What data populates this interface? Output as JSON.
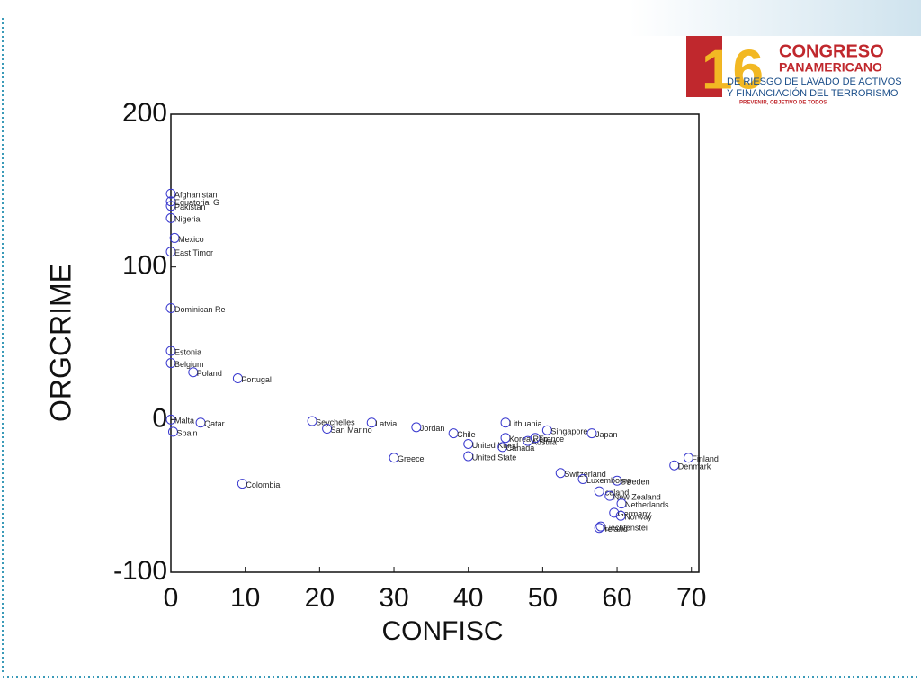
{
  "chart_data": {
    "type": "scatter",
    "xlabel": "CONFISC",
    "ylabel": "ORGCRIME",
    "xlim": [
      0,
      71
    ],
    "ylim": [
      -100,
      200
    ],
    "xticks": [
      0,
      10,
      20,
      30,
      40,
      50,
      60,
      70
    ],
    "yticks": [
      -100,
      0,
      100,
      200
    ],
    "color": "#3a3acf",
    "point_labels": [
      "Afghanistan",
      "Equatorial G",
      "Pakistan",
      "Nigeria",
      "Mexico",
      "East Timor",
      "Dominican Re",
      "Estonia",
      "Belgium",
      "Poland",
      "Portugal",
      "Malta",
      "Spain",
      "Qatar",
      "Colombia",
      "Seychelles",
      "San Marino",
      "Latvia",
      "Jordan",
      "Greece",
      "Chile",
      "Lithuania",
      "United Kingd",
      "United State",
      "Canada",
      "Korea Rep.",
      "Austria",
      "France",
      "Singapore",
      "Japan",
      "Switzerland",
      "Luxembourg",
      "Sweden",
      "Iceland",
      "New Zealand",
      "Netherlands",
      "Germany",
      "Norway",
      "Ireland",
      "Liechtenstei",
      "Denmark",
      "Finland"
    ],
    "x": [
      0,
      0,
      0,
      0,
      0.5,
      0,
      0,
      0,
      0,
      3,
      9,
      0,
      0.3,
      4,
      9.6,
      19,
      21,
      27,
      33,
      30,
      38,
      45,
      40,
      40,
      44.6,
      45,
      48,
      49,
      50.6,
      56.6,
      52.4,
      55.4,
      60,
      57.6,
      59,
      60.6,
      59.6,
      60.5,
      57.6,
      57.8,
      67.7,
      69.6
    ],
    "values": [
      148,
      143,
      140,
      132,
      119,
      110,
      73,
      45,
      37,
      31,
      27,
      0,
      -8,
      -2,
      -42,
      -1,
      -6,
      -2,
      -5,
      -25,
      -9,
      -2,
      -16,
      -24,
      -18,
      -12,
      -14,
      -12,
      -7,
      -9,
      -35,
      -39,
      -40,
      -47,
      -50,
      -55,
      -61,
      -63,
      -71,
      -70,
      -30,
      -25
    ]
  },
  "logo": {
    "number": "16",
    "line1": "CONGRESO",
    "line2": "PANAMERICANO",
    "line3": "DE RIESGO DE LAVADO DE ACTIVOS",
    "line4": "Y FINANCIACIÓN DEL TERRORISMO",
    "motto": "PREVENIR, OBJETIVO DE TODOS"
  }
}
